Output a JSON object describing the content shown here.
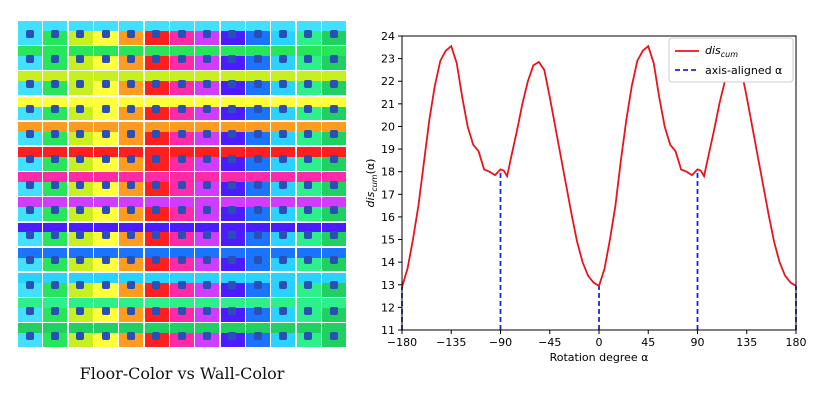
{
  "left_panel": {
    "caption": "Floor-Color vs Wall-Color",
    "rows": 13,
    "cols": 13,
    "row_colors": [
      "#41e0ff",
      "#28e65c",
      "#c8f020",
      "#ffff3a",
      "#ff9b1e",
      "#ff1f1f",
      "#ff2aa8",
      "#d23cff",
      "#4a1cff",
      "#1a74ff",
      "#2ad3ff",
      "#2ef08a",
      "#20d060"
    ],
    "col_colors": [
      "#41e0ff",
      "#28e65c",
      "#c8f020",
      "#ffff3a",
      "#ff9b1e",
      "#ff1f1f",
      "#ff2aa8",
      "#d23cff",
      "#4a1cff",
      "#1a74ff",
      "#2ad3ff",
      "#2ef08a",
      "#20d060"
    ],
    "object_color": "#2a4fb5"
  },
  "chart_data": {
    "type": "line",
    "title": "",
    "xlabel": "Rotation degree α",
    "ylabel_main": "dis",
    "ylabel_sub": "cum",
    "ylabel_suffix": "(α)",
    "xlim": [
      -180,
      180
    ],
    "ylim": [
      11,
      24
    ],
    "xticks": [
      -180,
      -135,
      -90,
      -45,
      0,
      45,
      90,
      135,
      180
    ],
    "xtick_labels": [
      "−180",
      "−135",
      "−90",
      "−45",
      "0",
      "45",
      "90",
      "135",
      "180"
    ],
    "yticks": [
      11,
      12,
      13,
      14,
      15,
      16,
      17,
      18,
      19,
      20,
      21,
      22,
      23,
      24
    ],
    "line_color": "#e8141c",
    "axis_line_color": "#1628d8",
    "legend": {
      "position": "top-right",
      "entries": [
        {
          "label_main": "dis",
          "label_sub": "cum",
          "style": "solid"
        },
        {
          "label_main": "axis-aligned α",
          "label_sub": "",
          "style": "dashed"
        }
      ]
    },
    "axis_aligned_x": [
      -180,
      -90,
      0,
      90,
      180
    ],
    "series": [
      {
        "name": "dis_cum",
        "x": [
          -180,
          -175,
          -170,
          -165,
          -160,
          -155,
          -150,
          -145,
          -140,
          -135,
          -130,
          -125,
          -120,
          -115,
          -110,
          -105,
          -100,
          -95,
          -90,
          -87,
          -84,
          -80,
          -75,
          -70,
          -65,
          -60,
          -55,
          -50,
          -45,
          -40,
          -35,
          -30,
          -25,
          -20,
          -15,
          -10,
          -5,
          0,
          5,
          10,
          15,
          20,
          25,
          30,
          35,
          40,
          45,
          50,
          55,
          60,
          65,
          70,
          75,
          80,
          85,
          90,
          93,
          96,
          100,
          105,
          110,
          115,
          120,
          125,
          130,
          135,
          140,
          145,
          150,
          155,
          160,
          165,
          170,
          175,
          180
        ],
        "values": [
          12.9,
          13.7,
          15.0,
          16.5,
          18.4,
          20.3,
          21.8,
          22.9,
          23.35,
          23.55,
          22.8,
          21.3,
          20.0,
          19.2,
          18.9,
          18.1,
          18.0,
          17.85,
          18.1,
          18.05,
          17.8,
          18.7,
          19.8,
          21.0,
          22.0,
          22.7,
          22.85,
          22.5,
          21.3,
          20.0,
          18.7,
          17.4,
          16.1,
          14.9,
          14.0,
          13.4,
          13.1,
          12.95,
          13.7,
          15.0,
          16.5,
          18.5,
          20.3,
          21.8,
          22.9,
          23.35,
          23.55,
          22.8,
          21.3,
          20.0,
          19.2,
          18.9,
          18.1,
          18.0,
          17.85,
          18.1,
          18.05,
          17.8,
          18.7,
          19.8,
          21.0,
          22.0,
          22.7,
          22.85,
          22.5,
          21.3,
          20.0,
          18.7,
          17.4,
          16.1,
          14.9,
          14.0,
          13.4,
          13.1,
          12.95
        ]
      }
    ]
  }
}
